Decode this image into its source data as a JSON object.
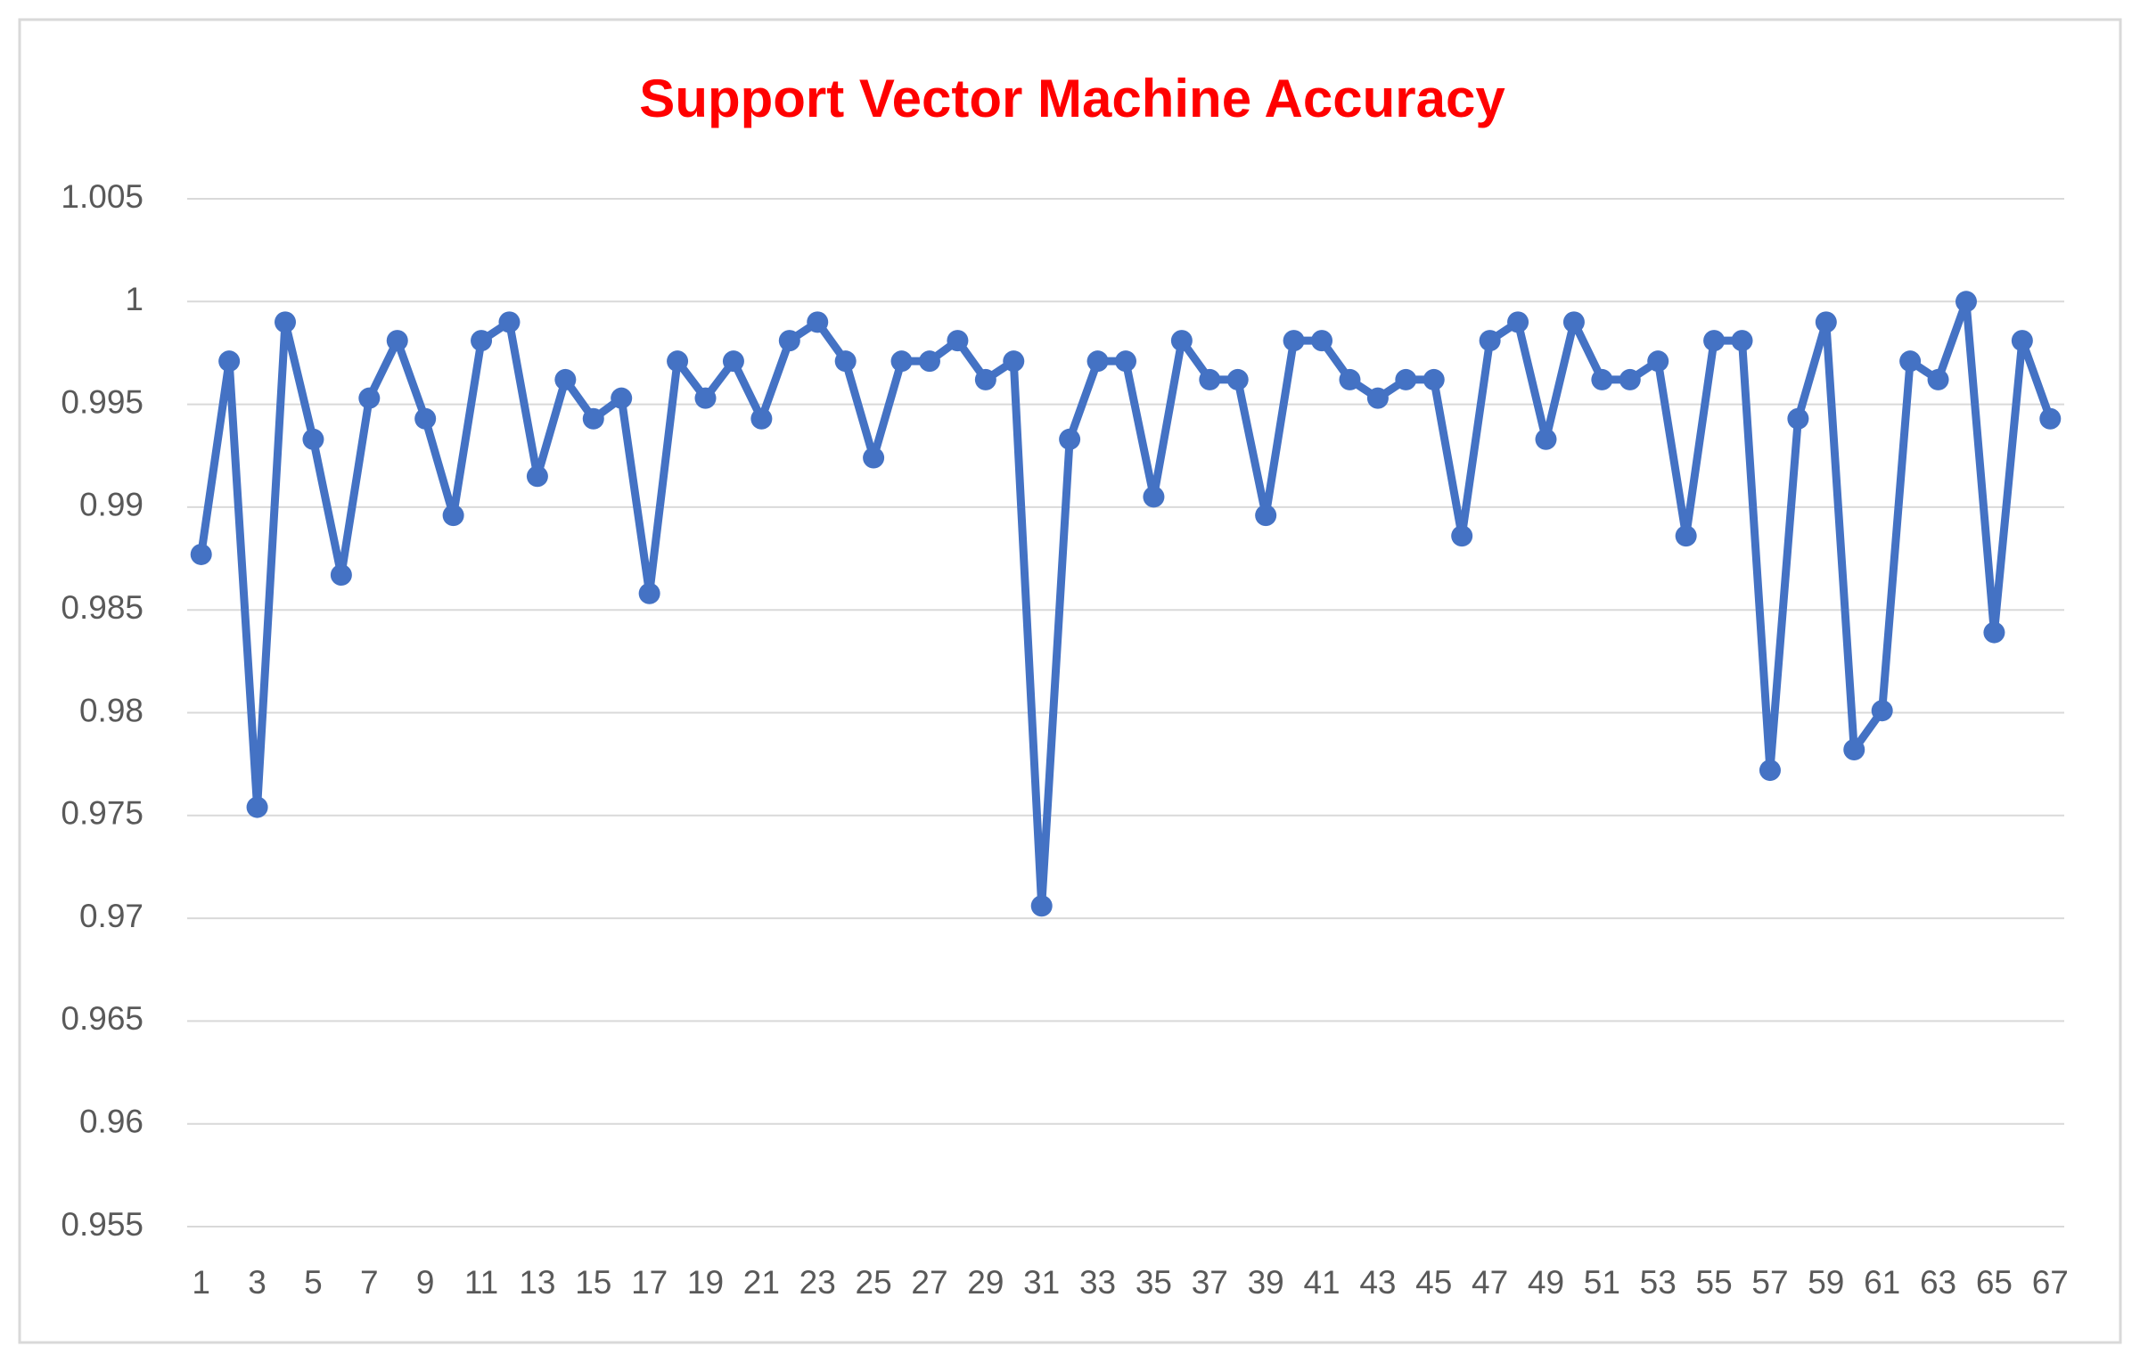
{
  "chart_data": {
    "type": "line",
    "title": "Support Vector Machine Accuracy",
    "categories": [
      1,
      null,
      3,
      null,
      5,
      null,
      7,
      null,
      9,
      null,
      11,
      null,
      13,
      null,
      15,
      null,
      17,
      null,
      19,
      null,
      21,
      null,
      23,
      null,
      25,
      null,
      27,
      null,
      29,
      null,
      31,
      null,
      33,
      null,
      35,
      null,
      37,
      null,
      39,
      null,
      41,
      null,
      43,
      null,
      45,
      null,
      47,
      null,
      49,
      null,
      51,
      null,
      53,
      null,
      55,
      null,
      57,
      null,
      59,
      null,
      61,
      null,
      63,
      null,
      65,
      null,
      67
    ],
    "values": [
      0.9877,
      0.9971,
      0.9754,
      0.999,
      0.9933,
      0.9867,
      0.9953,
      0.9981,
      0.9943,
      0.9896,
      0.9981,
      0.999,
      0.9915,
      0.9962,
      0.9943,
      0.9953,
      0.9858,
      0.9971,
      0.9953,
      0.9971,
      0.9943,
      0.9981,
      0.999,
      0.9971,
      0.9924,
      0.9971,
      0.9971,
      0.9981,
      0.9962,
      0.9971,
      0.9706,
      0.9933,
      0.9971,
      0.9971,
      0.9905,
      0.9981,
      0.9962,
      0.9962,
      0.9896,
      0.9981,
      0.9981,
      0.9962,
      0.9953,
      0.9962,
      0.9962,
      0.9886,
      0.9981,
      0.999,
      0.9933,
      0.999,
      0.9962,
      0.9962,
      0.9971,
      0.9886,
      0.9981,
      0.9981,
      0.9772,
      0.9943,
      0.999,
      0.9782,
      0.9801,
      0.9971,
      0.9962,
      1,
      0.9839,
      0.9981,
      0.9943
    ],
    "color": "#4472c4",
    "markers": true,
    "ylim": [
      0.955,
      1.005
    ],
    "yticks": [
      0.955,
      0.96,
      0.965,
      0.97,
      0.975,
      0.98,
      0.985,
      0.99,
      0.995,
      1,
      1.005
    ],
    "grid": true
  }
}
